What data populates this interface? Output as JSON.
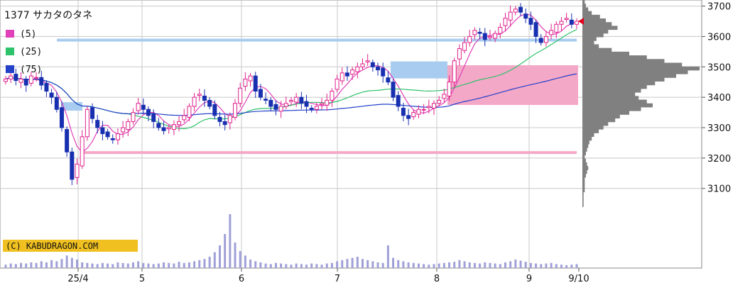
{
  "chart_data": {
    "type": "candlestick",
    "title": "1377 サカタのタネ",
    "legend": [
      {
        "name": "(5)",
        "color": "#e040b8"
      },
      {
        "name": "(25)",
        "color": "#2ec26a"
      },
      {
        "name": "(75)",
        "color": "#2240c8"
      }
    ],
    "copyright": "(C) KABUDRAGON.COM",
    "y_ticks": [
      3700,
      3600,
      3500,
      3400,
      3300,
      3200,
      3100
    ],
    "ylim": [
      3020,
      3720
    ],
    "x_ticks": [
      "25/4",
      "5",
      "6",
      "7",
      "8",
      "9",
      "9/10"
    ],
    "up_color": "#e0208c",
    "down_color": "#1830b0",
    "colors": {
      "grid": "#c8c8c8",
      "ma5": "#e040b8",
      "ma25": "#2ec26a",
      "ma75": "#2240c8",
      "blue_zone": "#a8ccf0",
      "pink_zone": "#f4a8c8",
      "profile": "#808080",
      "last_marker": "#e00020",
      "copyright_bg": "#f0c020"
    },
    "series_close": [
      3460,
      3470,
      3455,
      3460,
      3440,
      3470,
      3465,
      3440,
      3420,
      3400,
      3360,
      3300,
      3220,
      3130,
      3180,
      3270,
      3360,
      3330,
      3300,
      3280,
      3270,
      3260,
      3280,
      3300,
      3320,
      3350,
      3380,
      3360,
      3340,
      3320,
      3300,
      3290,
      3300,
      3310,
      3320,
      3340,
      3370,
      3400,
      3410,
      3390,
      3370,
      3340,
      3320,
      3310,
      3340,
      3380,
      3430,
      3460,
      3470,
      3420,
      3400,
      3390,
      3370,
      3360,
      3370,
      3380,
      3390,
      3400,
      3380,
      3370,
      3360,
      3370,
      3380,
      3390,
      3420,
      3460,
      3480,
      3470,
      3490,
      3500,
      3510,
      3520,
      3500,
      3490,
      3470,
      3450,
      3400,
      3370,
      3340,
      3330,
      3350,
      3360,
      3360,
      3370,
      3380,
      3390,
      3410,
      3450,
      3520,
      3560,
      3580,
      3600,
      3620,
      3610,
      3590,
      3600,
      3610,
      3630,
      3660,
      3680,
      3690,
      3680,
      3660,
      3640,
      3600,
      3580,
      3600,
      3620,
      3640,
      3650,
      3660,
      3640,
      3650
    ],
    "volume_rel": [
      0.06,
      0.08,
      0.07,
      0.09,
      0.08,
      0.1,
      0.09,
      0.12,
      0.1,
      0.14,
      0.12,
      0.16,
      0.22,
      0.18,
      0.15,
      0.1,
      0.09,
      0.08,
      0.07,
      0.09,
      0.08,
      0.07,
      0.1,
      0.09,
      0.08,
      0.1,
      0.12,
      0.09,
      0.08,
      0.07,
      0.08,
      0.1,
      0.09,
      0.08,
      0.11,
      0.09,
      0.1,
      0.12,
      0.14,
      0.16,
      0.2,
      0.28,
      0.4,
      0.6,
      0.95,
      0.45,
      0.3,
      0.22,
      0.15,
      0.12,
      0.1,
      0.08,
      0.07,
      0.09,
      0.08,
      0.07,
      0.06,
      0.08,
      0.07,
      0.06,
      0.08,
      0.07,
      0.06,
      0.08,
      0.09,
      0.12,
      0.14,
      0.16,
      0.18,
      0.2,
      0.16,
      0.14,
      0.12,
      0.1,
      0.09,
      0.4,
      0.18,
      0.14,
      0.12,
      0.1,
      0.09,
      0.08,
      0.07,
      0.06,
      0.07,
      0.08,
      0.09,
      0.1,
      0.11,
      0.14,
      0.12,
      0.1,
      0.09,
      0.08,
      0.1,
      0.09,
      0.08,
      0.07,
      0.1,
      0.12,
      0.15,
      0.13,
      0.11,
      0.09,
      0.08,
      0.07,
      0.08,
      0.09,
      0.07,
      0.06,
      0.05,
      0.06,
      0.07
    ],
    "volume_profile_rel": [
      0.02,
      0.03,
      0.05,
      0.08,
      0.15,
      0.2,
      0.25,
      0.3,
      0.22,
      0.18,
      0.12,
      0.1,
      0.14,
      0.25,
      0.4,
      0.55,
      0.7,
      0.85,
      1.0,
      0.9,
      0.8,
      0.7,
      0.62,
      0.55,
      0.5,
      0.45,
      0.48,
      0.55,
      0.6,
      0.5,
      0.4,
      0.32,
      0.28,
      0.22,
      0.18,
      0.14,
      0.1,
      0.08,
      0.06,
      0.05,
      0.04,
      0.03,
      0.02,
      0.03,
      0.04,
      0.05,
      0.04,
      0.03,
      0.02,
      0.02,
      0.02,
      0.02,
      0.01,
      0.01,
      0.01,
      0.01
    ]
  }
}
